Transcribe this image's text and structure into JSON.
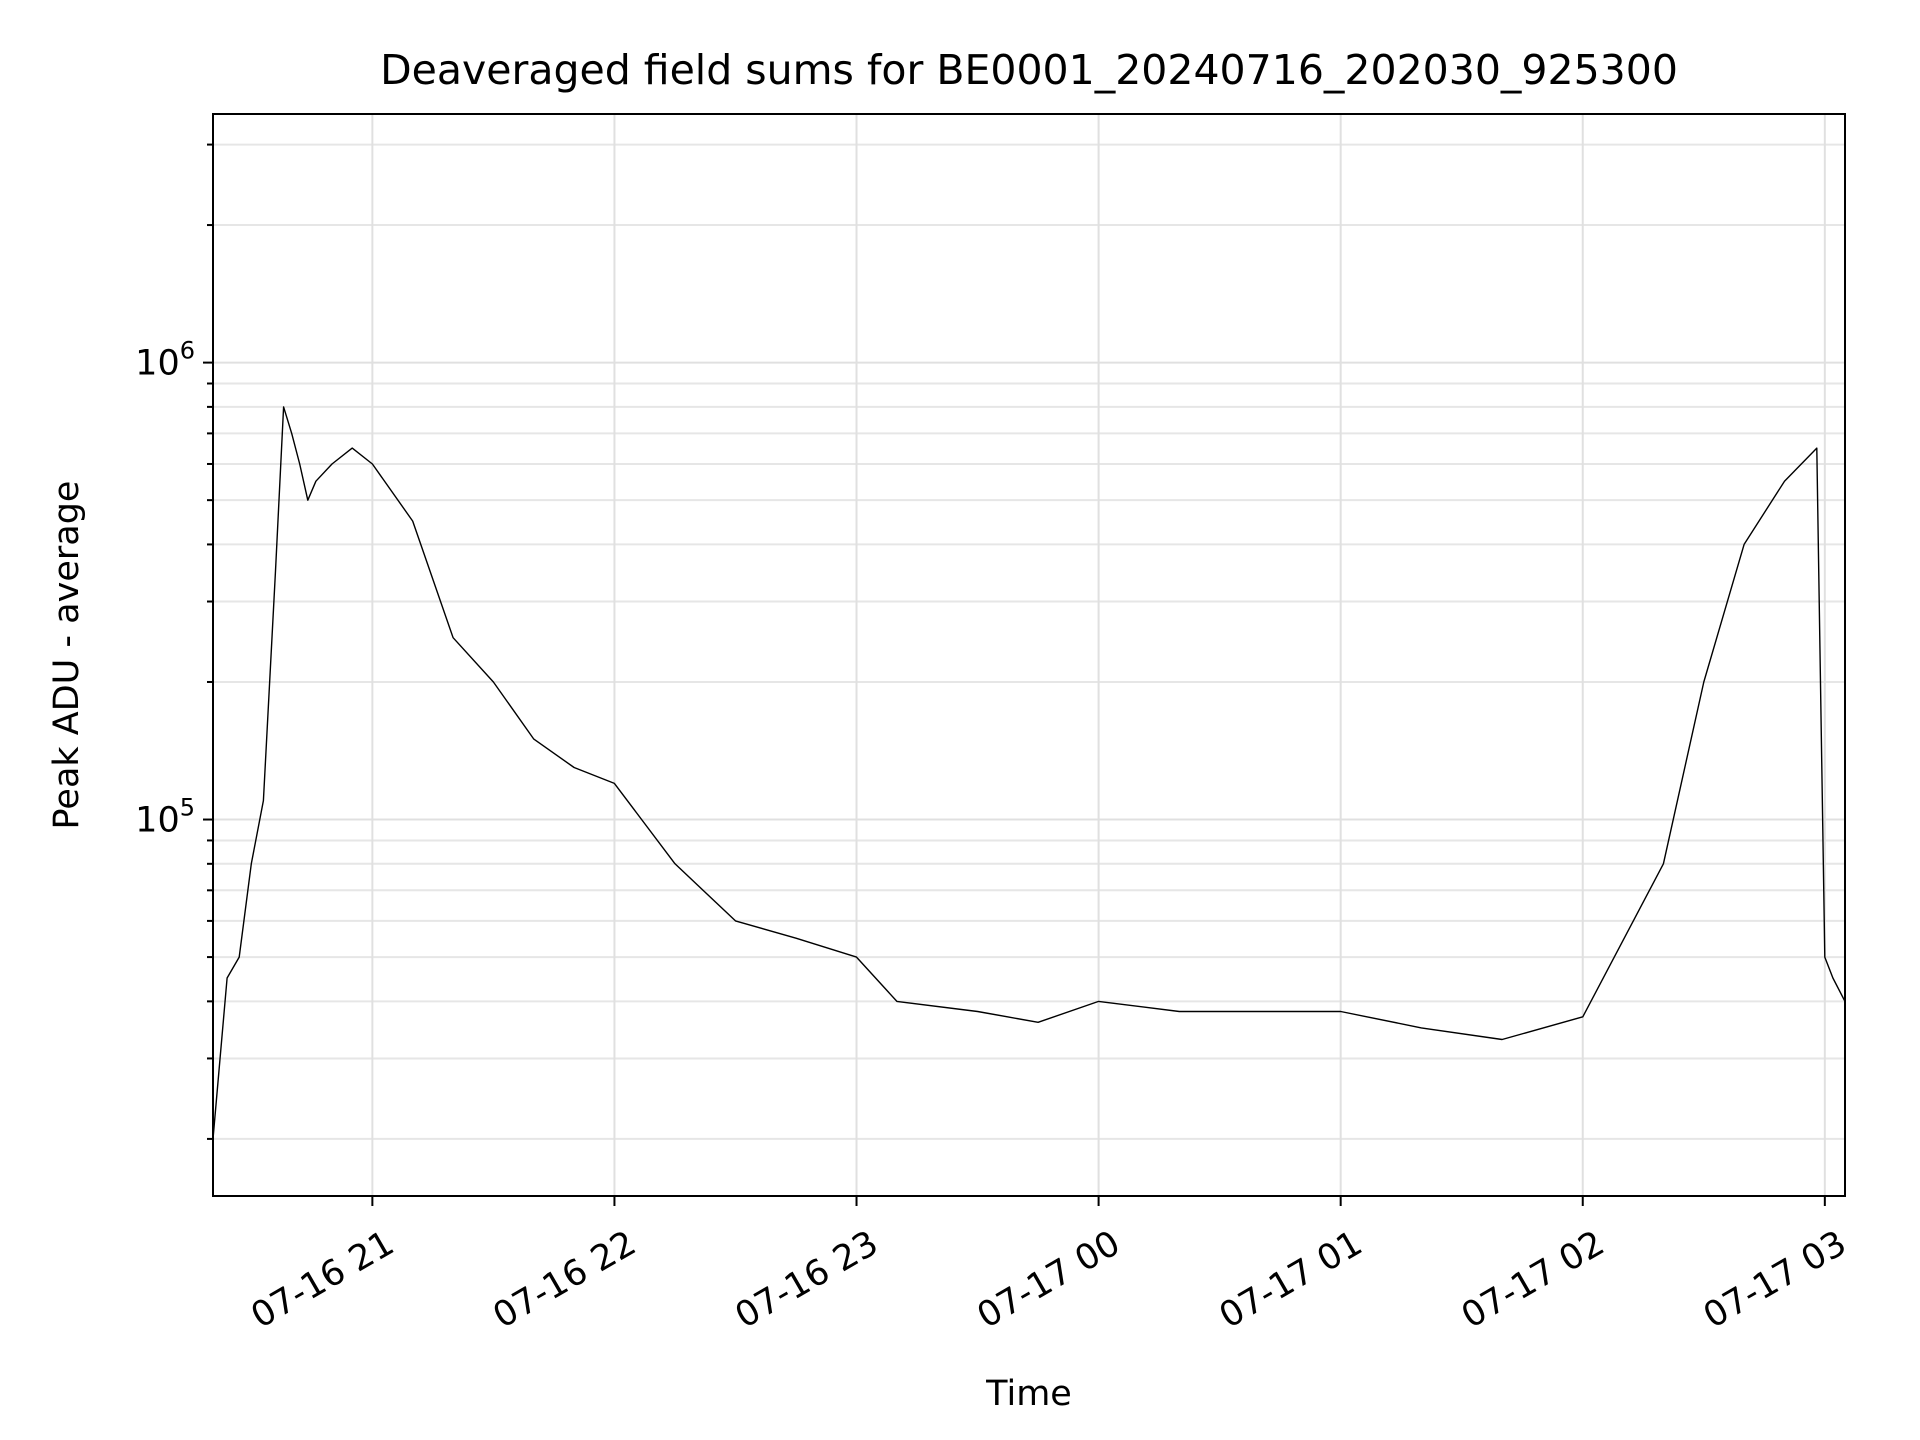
{
  "chart_data": {
    "type": "line",
    "title": "Deaveraged field sums for BE0001_20240716_202030_925300",
    "xlabel": "Time",
    "ylabel": "Peak ADU - average",
    "yscale": "log",
    "ylim": [
      15000,
      3500000
    ],
    "xlim": [
      "2024-07-16 20:20:30",
      "2024-07-17 03:05:00"
    ],
    "grid": true,
    "x_ticks": [
      {
        "value": "2024-07-16 21:00",
        "label": "07-16 21"
      },
      {
        "value": "2024-07-16 22:00",
        "label": "07-16 22"
      },
      {
        "value": "2024-07-16 23:00",
        "label": "07-16 23"
      },
      {
        "value": "2024-07-17 00:00",
        "label": "07-17 00"
      },
      {
        "value": "2024-07-17 01:00",
        "label": "07-17 01"
      },
      {
        "value": "2024-07-17 02:00",
        "label": "07-17 02"
      },
      {
        "value": "2024-07-17 03:00",
        "label": "07-17 03"
      }
    ],
    "y_ticks": [
      {
        "value": 100000,
        "base": "10",
        "exp": "5"
      },
      {
        "value": 1000000,
        "base": "10",
        "exp": "6"
      }
    ],
    "series": [
      {
        "color": "#000000",
        "x": [
          "2024-07-16 20:20:30",
          "2024-07-16 20:24:00",
          "2024-07-16 20:27:00",
          "2024-07-16 20:30:00",
          "2024-07-16 20:33:00",
          "2024-07-16 20:36:00",
          "2024-07-16 20:38:00",
          "2024-07-16 20:40:00",
          "2024-07-16 20:42:00",
          "2024-07-16 20:44:00",
          "2024-07-16 20:46:00",
          "2024-07-16 20:50:00",
          "2024-07-16 20:55:00",
          "2024-07-16 21:00:00",
          "2024-07-16 21:10:00",
          "2024-07-16 21:20:00",
          "2024-07-16 21:30:00",
          "2024-07-16 21:40:00",
          "2024-07-16 21:50:00",
          "2024-07-16 22:00:00",
          "2024-07-16 22:15:00",
          "2024-07-16 22:30:00",
          "2024-07-16 22:45:00",
          "2024-07-16 23:00:00",
          "2024-07-16 23:10:00",
          "2024-07-16 23:30:00",
          "2024-07-16 23:45:00",
          "2024-07-17 00:00:00",
          "2024-07-17 00:20:00",
          "2024-07-17 00:40:00",
          "2024-07-17 01:00:00",
          "2024-07-17 01:20:00",
          "2024-07-17 01:40:00",
          "2024-07-17 02:00:00",
          "2024-07-17 02:20:00",
          "2024-07-17 02:30:00",
          "2024-07-17 02:40:00",
          "2024-07-17 02:50:00",
          "2024-07-17 02:58:00",
          "2024-07-17 03:00:00",
          "2024-07-17 03:02:00",
          "2024-07-17 03:05:00"
        ],
        "y": [
          20000,
          45000,
          50000,
          80000,
          110000,
          350000,
          800000,
          700000,
          600000,
          500000,
          550000,
          600000,
          650000,
          600000,
          450000,
          250000,
          200000,
          150000,
          130000,
          120000,
          80000,
          60000,
          55000,
          50000,
          40000,
          38000,
          36000,
          40000,
          38000,
          38000,
          38000,
          35000,
          33000,
          37000,
          80000,
          200000,
          400000,
          550000,
          650000,
          50000,
          45000,
          40000
        ]
      }
    ],
    "annotations": []
  }
}
